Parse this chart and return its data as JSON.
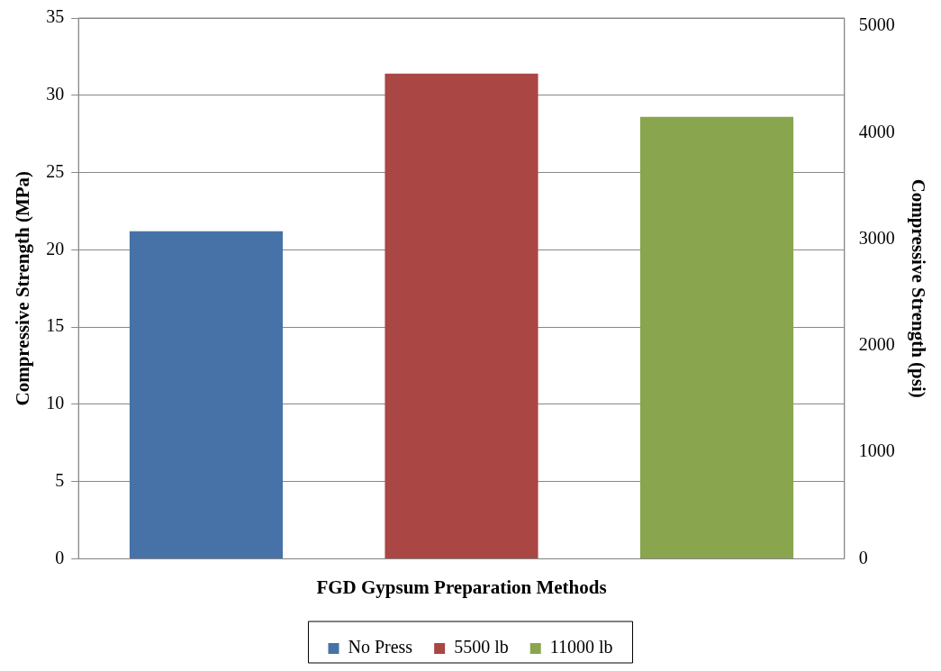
{
  "chart_data": {
    "type": "bar",
    "xlabel": "FGD Gypsum Preparation Methods",
    "ylabel": "Compressive Strength (MPa)",
    "y2label": "Compressive Strength (psi)",
    "categories": [
      null,
      null,
      null
    ],
    "series": [
      {
        "name": "No Press",
        "color": "#4672a8",
        "values": [
          21.2,
          null,
          null
        ]
      },
      {
        "name": "5500 lb",
        "color": "#aa4644",
        "values": [
          null,
          31.4,
          null
        ]
      },
      {
        "name": "11000 lb",
        "color": "#89a54e",
        "values": [
          null,
          null,
          28.6
        ]
      }
    ],
    "ylim": [
      0,
      35
    ],
    "yticks": [
      0,
      5,
      10,
      15,
      20,
      25,
      30,
      35
    ],
    "y2lim": [
      0,
      5076
    ],
    "y2ticks": [
      0,
      1000,
      2000,
      3000,
      4000,
      5000
    ],
    "grid": "y",
    "legend": "bottom"
  }
}
